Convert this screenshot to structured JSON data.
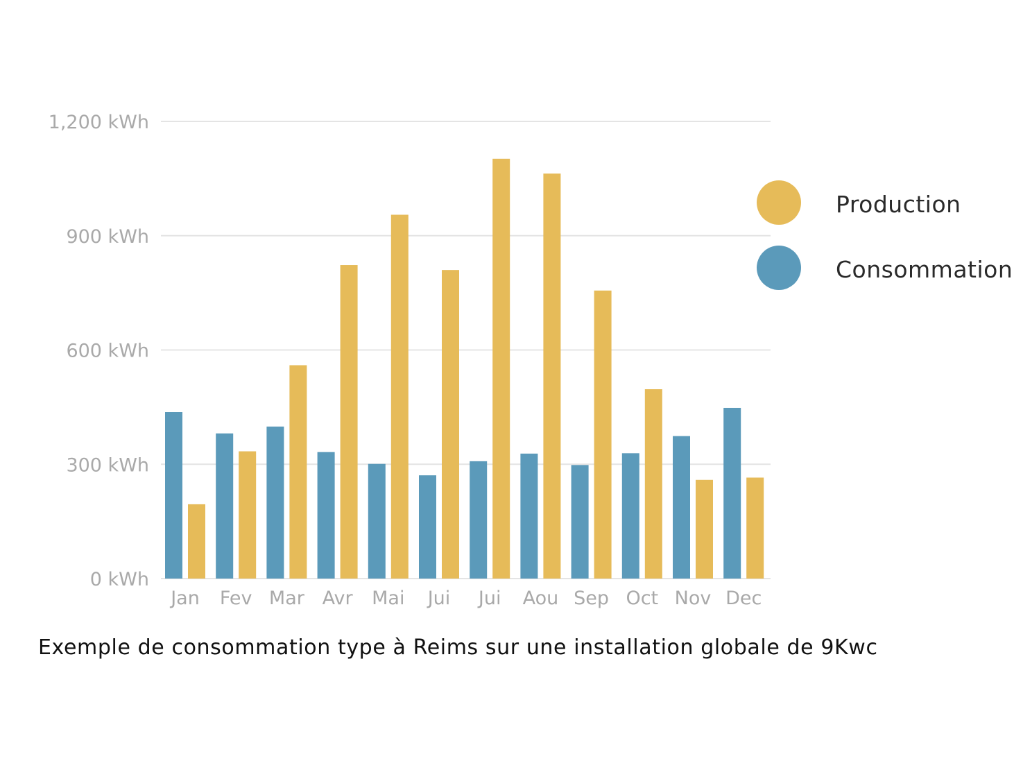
{
  "chart_data": {
    "type": "bar",
    "categories": [
      "Jan",
      "Fev",
      "Mar",
      "Avr",
      "Mai",
      "Jui",
      "Jui",
      "Aou",
      "Sep",
      "Oct",
      "Nov",
      "Dec"
    ],
    "series": [
      {
        "name": "Consommation",
        "color": "#5b9aba",
        "values": [
          437,
          381,
          399,
          332,
          301,
          271,
          308,
          328,
          298,
          329,
          374,
          448
        ]
      },
      {
        "name": "Production",
        "color": "#e6bb59",
        "values": [
          195,
          334,
          560,
          823,
          955,
          810,
          1102,
          1063,
          756,
          497,
          259,
          265
        ]
      }
    ],
    "ylim": [
      0,
      1200
    ],
    "y_ticks": [
      "0 kWh",
      "300 kWh",
      "600 kWh",
      "900 kWh",
      "1,200 kWh"
    ],
    "y_tick_values": [
      0,
      300,
      600,
      900,
      1200
    ],
    "grid": true,
    "legend_placement": "right"
  },
  "legend": {
    "production_label": "Production",
    "consommation_label": "Consommation",
    "production_color": "#e6bb59",
    "consommation_color": "#5b9aba"
  },
  "caption": "Exemple de consommation type à Reims sur une installation globale de 9Kwc"
}
